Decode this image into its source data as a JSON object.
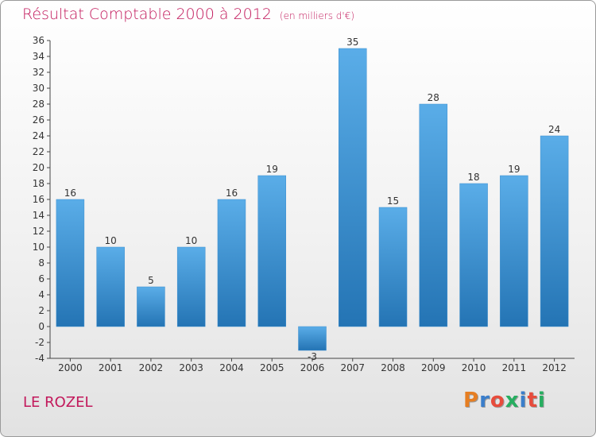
{
  "header": {
    "title": "Résultat Comptable 2000 à 2012",
    "unit": "(en milliers d'€)"
  },
  "footer": {
    "place": "LE ROZEL",
    "logo": "Proxiti",
    "logo_colors": [
      "#e67e22",
      "#3a7ecb",
      "#e74c3c",
      "#27ae60",
      "#3a7ecb",
      "#e74c3c",
      "#27ae60"
    ]
  },
  "chart_data": {
    "type": "bar",
    "title": "Résultat Comptable 2000 à 2012",
    "xlabel": "",
    "ylabel": "",
    "categories": [
      "2000",
      "2001",
      "2002",
      "2003",
      "2004",
      "2005",
      "2006",
      "2007",
      "2008",
      "2009",
      "2010",
      "2011",
      "2012"
    ],
    "values": [
      16,
      10,
      5,
      10,
      16,
      19,
      -3,
      35,
      15,
      28,
      18,
      19,
      24
    ],
    "ylim": [
      -4,
      36
    ],
    "ytick_step": 2,
    "grid": false,
    "bar_color_top": "#5aade8",
    "bar_color_bottom": "#2474b4"
  }
}
